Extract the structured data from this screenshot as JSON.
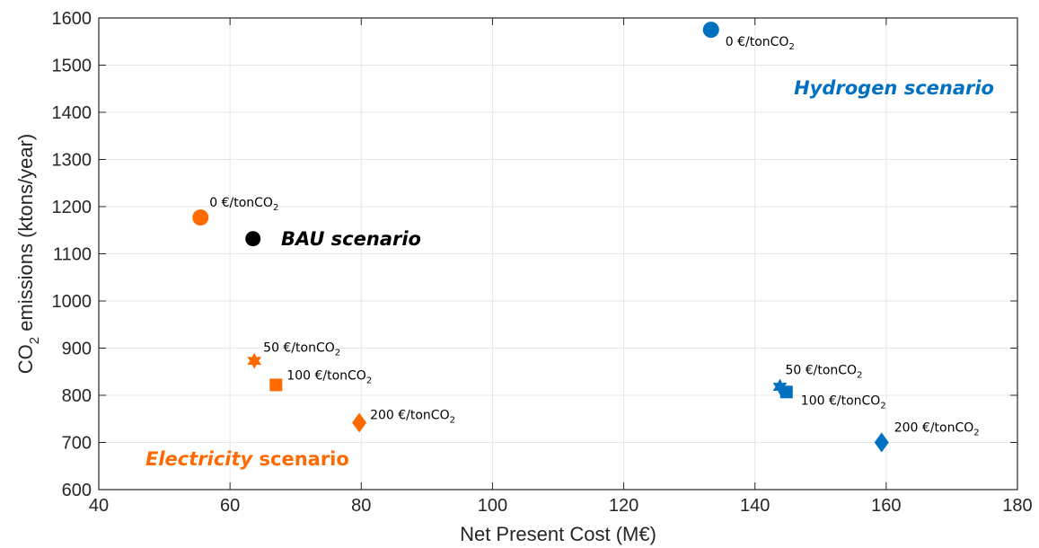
{
  "colors": {
    "electricity": "#FF6A00",
    "hydrogen": "#0070C0",
    "bau": "#000000",
    "grid": "#e6e6e6",
    "axis": "#262626"
  },
  "chart_data": {
    "type": "scatter",
    "xlabel": "Net Present Cost (M€)",
    "ylabel": "CO2 emissions (ktons/year)",
    "xlim": [
      40,
      180
    ],
    "ylim": [
      600,
      1600
    ],
    "x_ticks": [
      "40",
      "60",
      "80",
      "100",
      "120",
      "140",
      "160",
      "180"
    ],
    "y_ticks": [
      "600",
      "700",
      "800",
      "900",
      "1000",
      "1100",
      "1200",
      "1300",
      "1400",
      "1500",
      "1600"
    ],
    "grid": true,
    "series": [
      {
        "scenario": "electricity",
        "points": [
          {
            "x": 55.5,
            "y": 1177,
            "marker": "circle",
            "label": "0 €/tonCO2"
          },
          {
            "x": 63.7,
            "y": 873,
            "marker": "hexagram",
            "label": "50 €/tonCO2"
          },
          {
            "x": 67.0,
            "y": 822,
            "marker": "square",
            "label": "100 €/tonCO2"
          },
          {
            "x": 79.7,
            "y": 742,
            "marker": "diamond",
            "label": "200 €/tonCO2"
          }
        ]
      },
      {
        "scenario": "hydrogen",
        "points": [
          {
            "x": 133.3,
            "y": 1575,
            "marker": "circle",
            "label": "0 €/tonCO2"
          },
          {
            "x": 143.8,
            "y": 818,
            "marker": "hexagram",
            "label": "50 €/tonCO2"
          },
          {
            "x": 144.8,
            "y": 807,
            "marker": "square",
            "label": "100 €/tonCO2"
          },
          {
            "x": 159.3,
            "y": 700,
            "marker": "diamond",
            "label": "200 €/tonCO2"
          }
        ]
      },
      {
        "scenario": "bau",
        "points": [
          {
            "x": 63.5,
            "y": 1132,
            "marker": "circle",
            "label": ""
          }
        ]
      }
    ],
    "annotations": {
      "hydrogen": "Hydrogen scenario",
      "bau_word": "BAU",
      "bau_rest": " scenario",
      "electricity_word": "Electricity",
      "electricity_rest": " scenario"
    }
  }
}
